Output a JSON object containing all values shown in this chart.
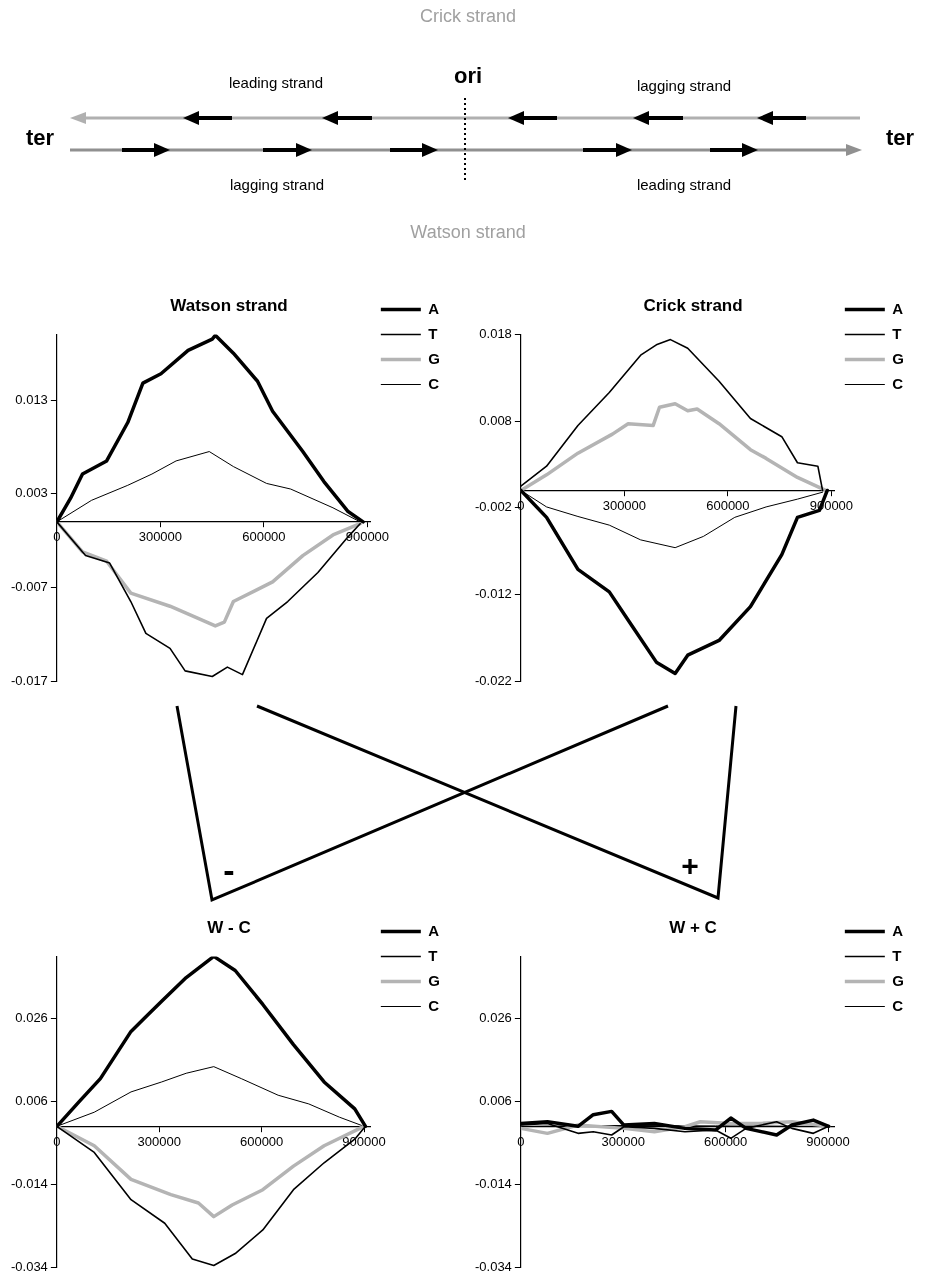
{
  "chart_data": [
    {
      "type": "other",
      "annotations": [
        "Crick strand",
        "leading strand",
        "ori",
        "lagging strand",
        "ter",
        "ter",
        "lagging strand",
        "leading strand",
        "Watson strand",
        "-",
        "+"
      ]
    },
    {
      "type": "line",
      "title": "Watson strand",
      "xlim": [
        0,
        910000
      ],
      "xticks": [
        0,
        300000,
        600000,
        900000
      ],
      "ylim": [
        -0.017,
        0.02
      ],
      "yticks": [
        0.013,
        0.003,
        -0.007,
        -0.017
      ],
      "legend": "top right",
      "series": [
        {
          "name": "A",
          "color": "#000000",
          "x": [
            0,
            39400,
            74300,
            144300,
            205500,
            249300,
            301700,
            380400,
            450400,
            459200,
            511600,
            581600,
            625300,
            712800,
            774000,
            844000,
            887700
          ],
          "values": [
            0,
            0.0025,
            0.0051,
            0.0065,
            0.0106,
            0.0148,
            0.0158,
            0.0183,
            0.0195,
            0.0199,
            0.018,
            0.015,
            0.0118,
            0.0075,
            0.0043,
            0.0011,
            0
          ]
        },
        {
          "name": "T",
          "color": "#000000",
          "x": [
            0,
            83100,
            153000,
            214300,
            258000,
            328000,
            371700,
            450400,
            494200,
            537900,
            607800,
            669100,
            756600,
            844000,
            879000
          ],
          "values": [
            0,
            -0.0036,
            -0.0044,
            -0.0085,
            -0.0119,
            -0.0135,
            -0.0159,
            -0.0165,
            -0.0155,
            -0.0163,
            -0.0103,
            -0.0085,
            -0.0054,
            -0.0016,
            -0.0002
          ]
        },
        {
          "name": "G",
          "color": "#b4b4b4",
          "x": [
            0,
            74300,
            144300,
            214300,
            328000,
            397900,
            459200,
            485400,
            511600,
            625300,
            712800,
            800300,
            879000
          ],
          "values": [
            0,
            -0.0032,
            -0.0042,
            -0.0076,
            -0.009,
            -0.0101,
            -0.0111,
            -0.0107,
            -0.0085,
            -0.0064,
            -0.0036,
            -0.0014,
            -0.0002
          ]
        },
        {
          "name": "C",
          "color": "#000000",
          "x": [
            0,
            100600,
            205500,
            275500,
            345500,
            441700,
            511600,
            607800,
            677800,
            800300,
            879000
          ],
          "values": [
            0,
            0.0023,
            0.0039,
            0.0051,
            0.0065,
            0.0075,
            0.0059,
            0.0041,
            0.0035,
            0.0015,
            0
          ]
        }
      ]
    },
    {
      "type": "line",
      "title": "Crick strand",
      "xlim": [
        0,
        910000
      ],
      "xticks": [
        0,
        300000,
        600000,
        900000
      ],
      "ylim": [
        -0.022,
        0.018
      ],
      "yticks": [
        0.018,
        0.008,
        -0.002,
        -0.012,
        -0.022
      ],
      "legend": "top right",
      "series": [
        {
          "name": "A",
          "color": "#000000",
          "x": [
            0,
            74500,
            165400,
            256300,
            320000,
            392700,
            447200,
            483600,
            574500,
            665400,
            756300,
            801700,
            865400,
            888100
          ],
          "values": [
            0,
            -0.0031,
            -0.0091,
            -0.0117,
            -0.0155,
            -0.0198,
            -0.0211,
            -0.019,
            -0.0173,
            -0.0134,
            -0.0074,
            -0.0031,
            -0.0023,
            0
          ]
        },
        {
          "name": "T",
          "color": "#000000",
          "x": [
            0,
            74500,
            165400,
            256300,
            347200,
            392700,
            433600,
            483600,
            574500,
            665400,
            756300,
            801700,
            860800,
            874500
          ],
          "values": [
            0.0005,
            0.0028,
            0.0075,
            0.0113,
            0.0156,
            0.0168,
            0.0174,
            0.0164,
            0.0126,
            0.0083,
            0.0062,
            0.0032,
            0.0028,
            0
          ]
        },
        {
          "name": "G",
          "color": "#b4b4b4",
          "x": [
            0,
            74500,
            165400,
            265400,
            310900,
            383600,
            401800,
            447200,
            483600,
            510900,
            574500,
            665400,
            710800,
            801700,
            883500
          ],
          "values": [
            0,
            0.0018,
            0.0043,
            0.0065,
            0.0077,
            0.0075,
            0.0096,
            0.01,
            0.0092,
            0.0094,
            0.0077,
            0.0047,
            0.0037,
            0.0015,
            0
          ]
        },
        {
          "name": "C",
          "color": "#000000",
          "x": [
            0,
            74500,
            165400,
            256300,
            347200,
            447200,
            529000,
            620000,
            710800,
            801700,
            874500
          ],
          "values": [
            0,
            -0.0019,
            -0.003,
            -0.004,
            -0.0057,
            -0.0066,
            -0.0053,
            -0.0031,
            -0.0019,
            -0.001,
            -0.0002
          ]
        }
      ]
    },
    {
      "type": "line",
      "title": "W - C",
      "xlim": [
        0,
        920000
      ],
      "xticks": [
        0,
        300000,
        600000,
        900000
      ],
      "ylim": [
        -0.034,
        0.041
      ],
      "yticks": [
        0.026,
        0.006,
        -0.014,
        -0.034
      ],
      "legend": "top right",
      "series": [
        {
          "name": "A",
          "color": "#000000",
          "x": [
            0,
            64700,
            127500,
            217300,
            307100,
            379000,
            459800,
            522600,
            603500,
            693300,
            783100,
            872900,
            904300
          ],
          "values": [
            0,
            0.0059,
            0.0115,
            0.0229,
            0.0302,
            0.0359,
            0.041,
            0.0376,
            0.0294,
            0.0197,
            0.0107,
            0.0042,
            0
          ]
        },
        {
          "name": "T",
          "color": "#000000",
          "x": [
            0,
            109600,
            217300,
            316100,
            396900,
            459800,
            522600,
            603500,
            693300,
            783100,
            872900,
            904300
          ],
          "values": [
            0,
            -0.0063,
            -0.0177,
            -0.0234,
            -0.032,
            -0.0336,
            -0.0307,
            -0.025,
            -0.0153,
            -0.0088,
            -0.0031,
            0
          ]
        },
        {
          "name": "G",
          "color": "#b4b4b4",
          "x": [
            0,
            109600,
            217300,
            334100,
            414900,
            459800,
            513700,
            603500,
            693300,
            783100,
            899800
          ],
          "values": [
            0,
            -0.0047,
            -0.0128,
            -0.0165,
            -0.0185,
            -0.0218,
            -0.019,
            -0.0153,
            -0.0096,
            -0.0047,
            0
          ]
        },
        {
          "name": "C",
          "color": "#000000",
          "x": [
            0,
            109600,
            217300,
            307100,
            379000,
            459800,
            540600,
            648400,
            738200,
            828000,
            899800
          ],
          "values": [
            0,
            0.0034,
            0.0083,
            0.0107,
            0.0128,
            0.0144,
            0.0115,
            0.0075,
            0.0054,
            0.0022,
            0
          ]
        }
      ]
    },
    {
      "type": "line",
      "title": "W + C",
      "xlim": [
        0,
        920000
      ],
      "xticks": [
        0,
        300000,
        600000,
        900000
      ],
      "ylim": [
        -0.034,
        0.041
      ],
      "yticks": [
        0.026,
        0.006,
        -0.014,
        -0.034
      ],
      "legend": "top right",
      "series": [
        {
          "name": "A",
          "color": "#000000",
          "x": [
            0,
            77900,
            167500,
            212200,
            266000,
            301800,
            391300,
            480900,
            570400,
            615200,
            660000,
            749500,
            794300,
            857000,
            901800
          ],
          "values": [
            0.0007,
            0.0011,
            0,
            0.0028,
            0.0036,
            0.0003,
            0.0007,
            -0.0005,
            -0.0009,
            0.002,
            -0.0005,
            -0.0021,
            0.0003,
            0.0015,
            0
          ]
        },
        {
          "name": "T",
          "color": "#000000",
          "x": [
            0,
            77900,
            167500,
            212200,
            266000,
            301800,
            391300,
            480900,
            570400,
            615200,
            660000,
            749500,
            794300,
            857000,
            901800
          ],
          "values": [
            0.0003,
            0.0007,
            -0.0017,
            -0.0013,
            -0.0021,
            -0.0001,
            -0.0005,
            -0.0013,
            -0.0009,
            -0.0029,
            -0.0005,
            0.0011,
            -0.0005,
            -0.0017,
            0
          ]
        },
        {
          "name": "G",
          "color": "#b4b4b4",
          "x": [
            0,
            77900,
            167500,
            301800,
            391300,
            480900,
            525700,
            615200,
            704800,
            794300,
            901800
          ],
          "values": [
            -0.0005,
            -0.0017,
            0.0003,
            -0.0005,
            -0.0013,
            -0.0001,
            0.0011,
            0.0007,
            0.0007,
            0.0011,
            0
          ]
        },
        {
          "name": "C",
          "color": "#000000",
          "x": [
            0,
            301800,
            570400,
            901800
          ],
          "values": [
            0,
            0.0002,
            0.0001,
            0
          ]
        }
      ]
    }
  ]
}
